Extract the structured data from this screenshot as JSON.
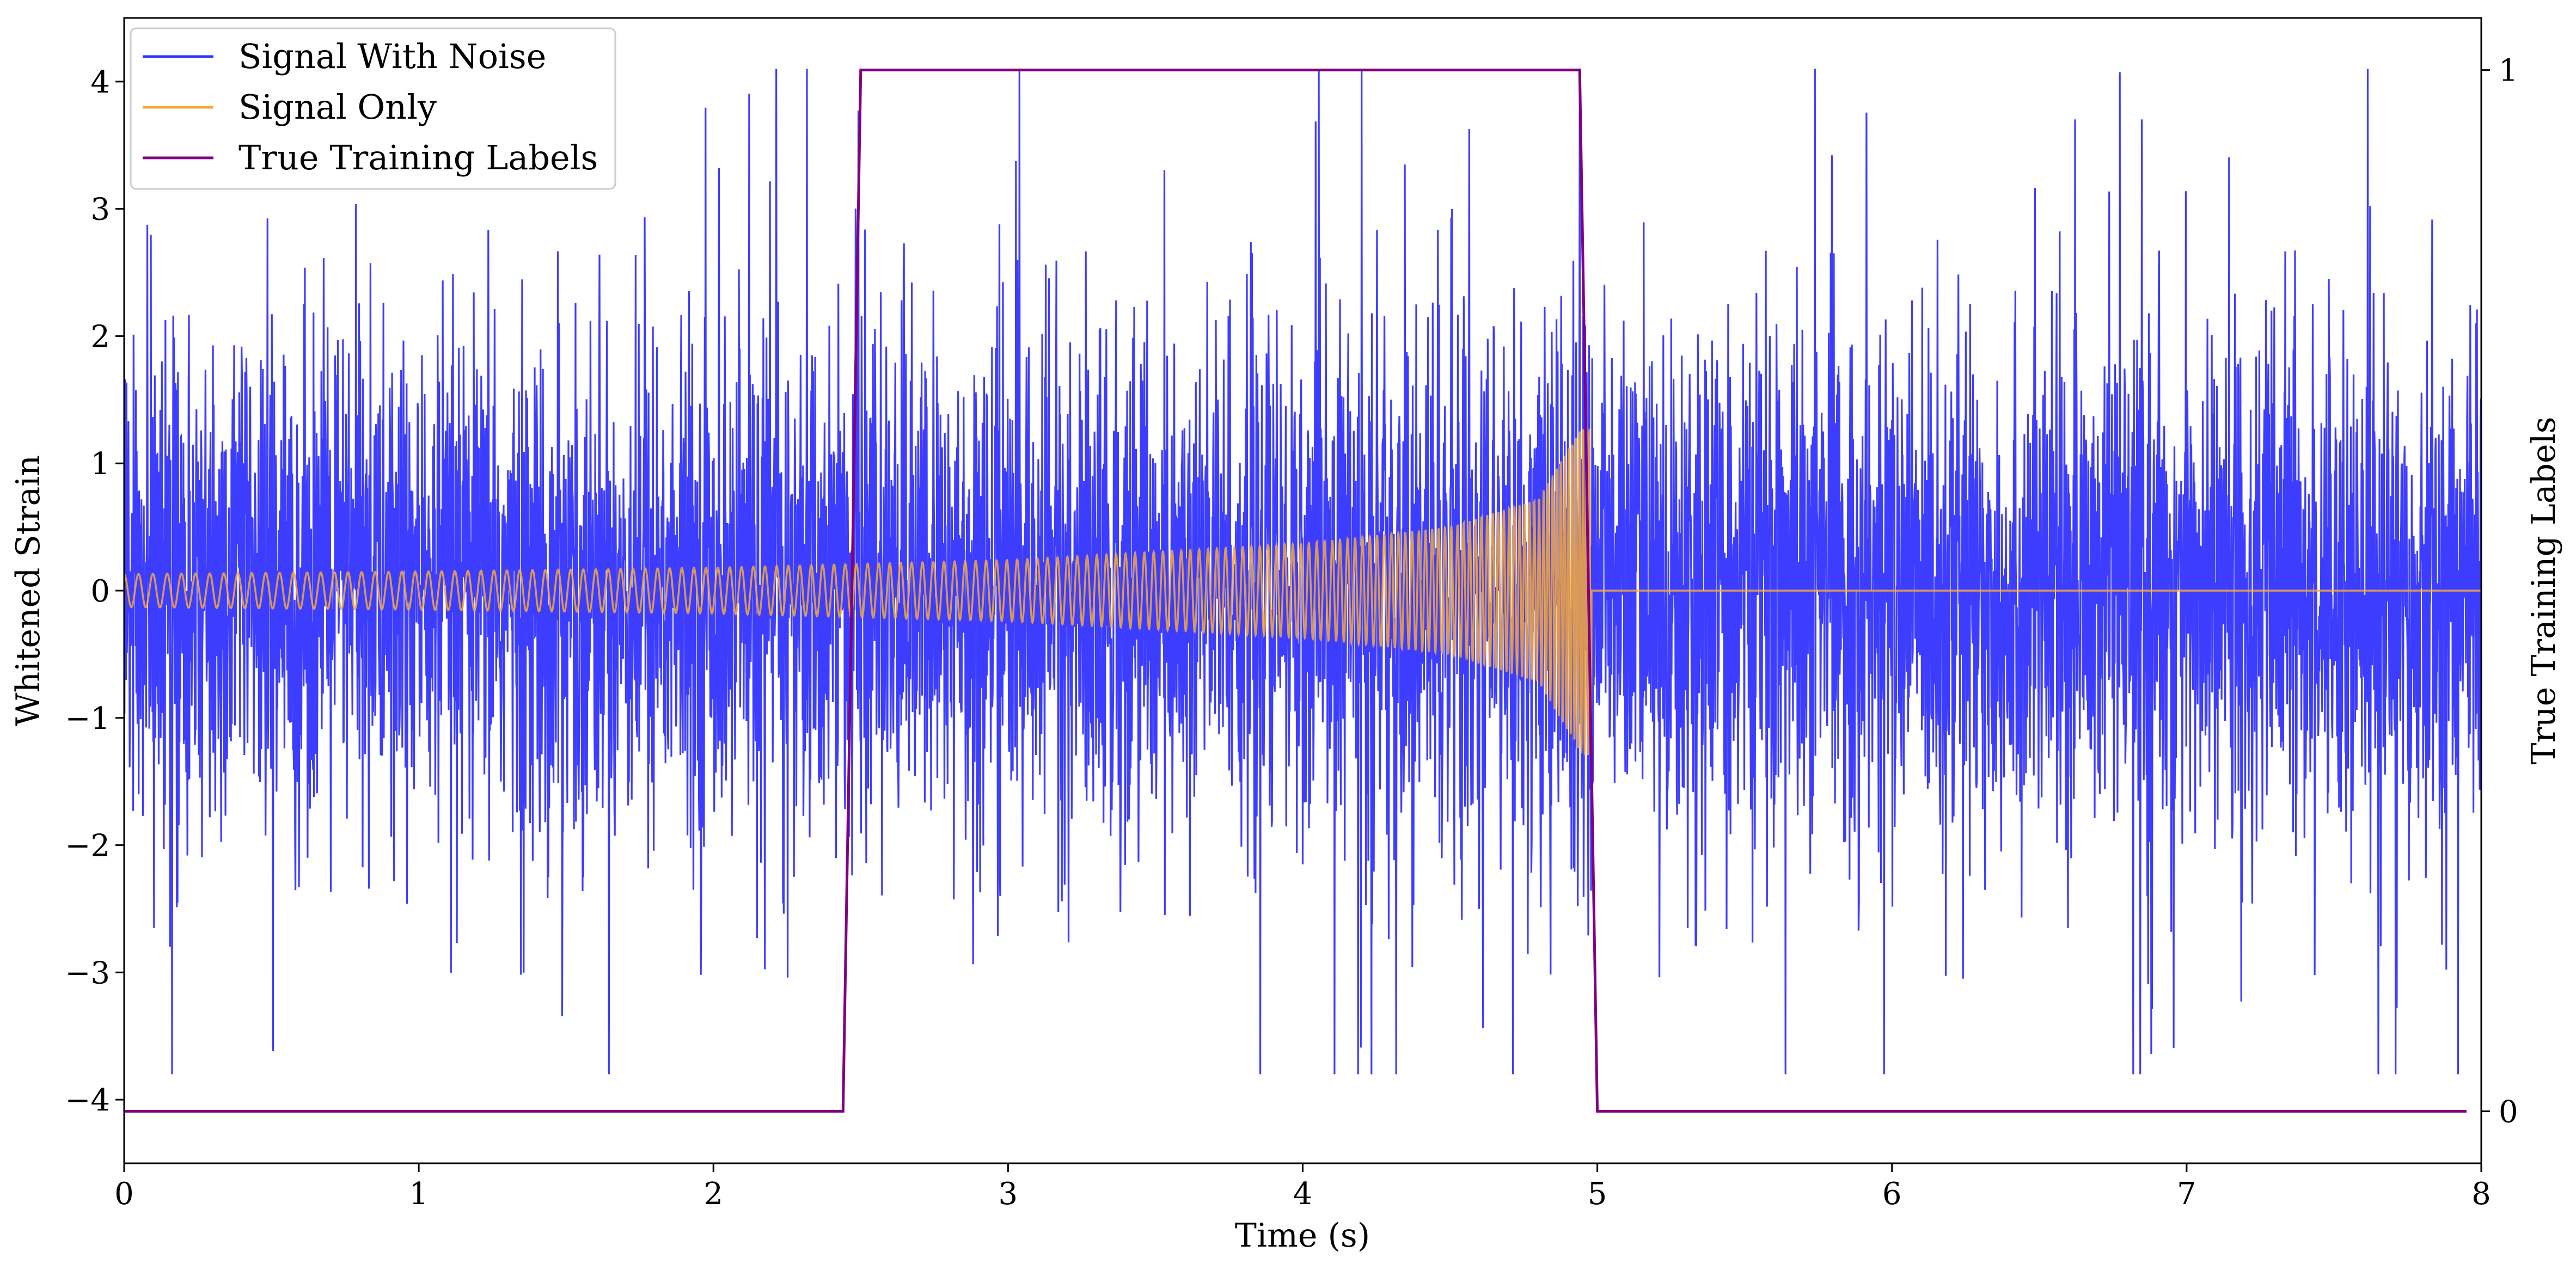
{
  "chart_data": {
    "type": "line",
    "xlabel": "Time (s)",
    "ylabel": "Whitened Strain",
    "y2label": "True Training Labels",
    "xlim": [
      0,
      8
    ],
    "ylim": [
      -4.5,
      4.5
    ],
    "y2lim": [
      -0.05,
      1.05
    ],
    "x_ticks": [
      0,
      1,
      2,
      3,
      4,
      5,
      6,
      7,
      8
    ],
    "y_ticks": [
      4,
      3,
      2,
      1,
      0,
      -1,
      -2,
      -3,
      -4
    ],
    "y_tick_labels": [
      "4",
      "3",
      "2",
      "1",
      "0",
      "−1",
      "−2",
      "−3",
      "−4"
    ],
    "y2_ticks": [
      1,
      0
    ],
    "legend_placement": "top-left",
    "grid": false,
    "series": [
      {
        "name": "Signal With Noise",
        "color": "#3333ff",
        "kind": "noise",
        "x_range": [
          0,
          8
        ],
        "typical_amplitude": 1.6,
        "min": -3.8,
        "max": 4.1
      },
      {
        "name": "Signal Only",
        "color": "#f5a83a",
        "kind": "chirp",
        "x_range": [
          0,
          4.98
        ],
        "envelope": [
          {
            "t": 0,
            "amp": 0.13
          },
          {
            "t": 1,
            "amp": 0.15
          },
          {
            "t": 2,
            "amp": 0.18
          },
          {
            "t": 3,
            "amp": 0.24
          },
          {
            "t": 4,
            "amp": 0.37
          },
          {
            "t": 4.5,
            "amp": 0.5
          },
          {
            "t": 4.8,
            "amp": 0.72
          },
          {
            "t": 4.95,
            "amp": 1.3
          }
        ],
        "after_merger_value": 0
      },
      {
        "name": "True Training Labels",
        "color": "#800080",
        "axis": "right",
        "x": [
          0,
          2.44,
          2.5,
          4.94,
          5.0,
          7.95
        ],
        "y": [
          0,
          0,
          1,
          1,
          0,
          0
        ]
      }
    ]
  }
}
